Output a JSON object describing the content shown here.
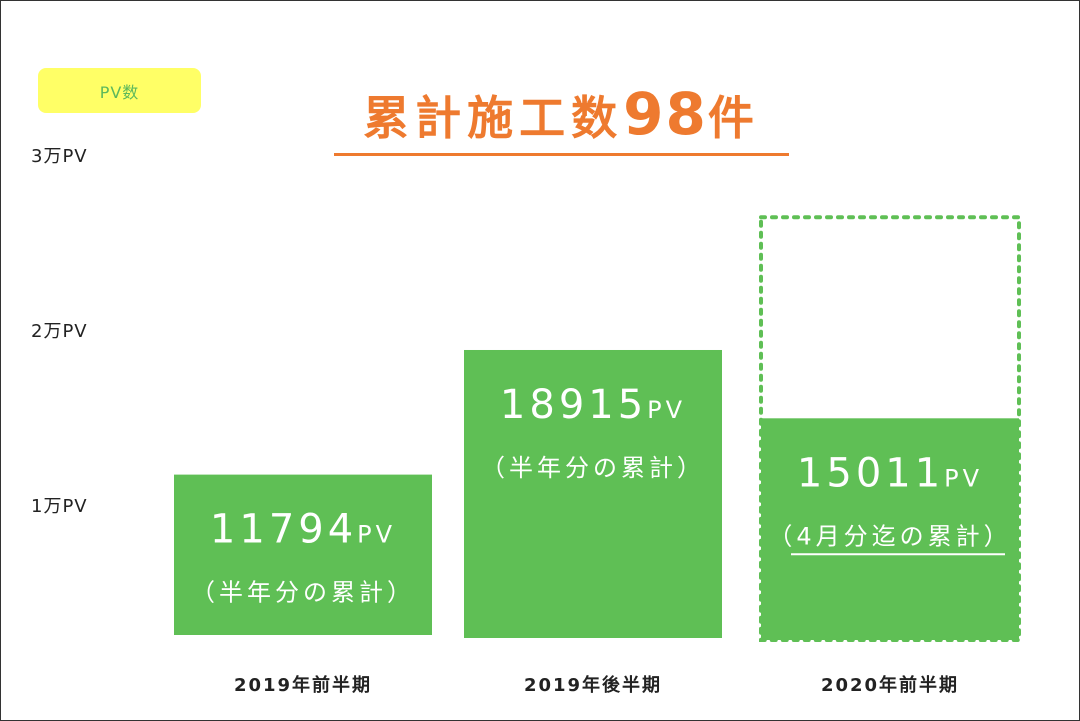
{
  "badge": "PV数",
  "title": {
    "text": "累計施工数",
    "count": "98",
    "unit": "件"
  },
  "chart_data": {
    "type": "bar",
    "categories": [
      "2019年前半期",
      "2019年後半期",
      "2020年前半期"
    ],
    "values": [
      11794,
      18915,
      15011
    ],
    "value_labels": [
      "11794",
      "18915",
      "15011"
    ],
    "value_unit": "PV",
    "bar_notes": [
      "（半年分の累計）",
      "（半年分の累計）",
      "（4月分迄の累計）"
    ],
    "projected": {
      "category_index": 2,
      "value": 26500,
      "style": "dotted-outline"
    },
    "ylim": [
      0,
      30000
    ],
    "yticks": [
      {
        "value": 10000,
        "label": "1万PV"
      },
      {
        "value": 20000,
        "label": "2万PV"
      },
      {
        "value": 30000,
        "label": "3万PV"
      }
    ],
    "grid": false,
    "colors": {
      "bar": "#5fbf55",
      "projected_outline": "#5fbf55",
      "title": "#ee7a2f",
      "badge": "#ffff66"
    }
  }
}
